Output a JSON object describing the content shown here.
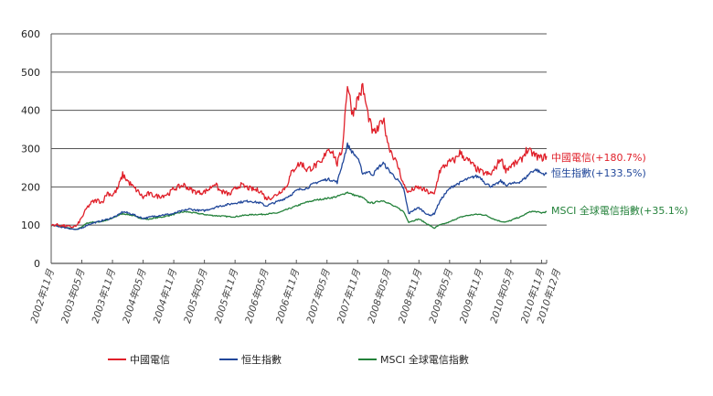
{
  "chart_data": {
    "type": "line",
    "title": "",
    "xlabel": "",
    "ylabel": "",
    "ylim": [
      0,
      600
    ],
    "yticks": [
      0,
      100,
      200,
      300,
      400,
      500,
      600
    ],
    "grid": true,
    "start_month": "2002-11",
    "x_tick_labels": [
      "2002年11月",
      "2003年05月",
      "2003年11月",
      "2004年05月",
      "2004年11月",
      "2005年05月",
      "2005年11月",
      "2006年05月",
      "2006年11月",
      "2007年05月",
      "2007年11月",
      "2008年05月",
      "2008年11月",
      "2009年05月",
      "2009年11月",
      "2010年05月",
      "2010年11月",
      "2010年12月"
    ],
    "x_tick_months": [
      0,
      6,
      12,
      18,
      24,
      30,
      36,
      42,
      48,
      54,
      60,
      66,
      72,
      78,
      84,
      90,
      96,
      97
    ],
    "legend_position": "bottom",
    "series": [
      {
        "name": "中國電信",
        "end_label": "中國電信(+180.7%)",
        "color": "#e0202a",
        "values": [
          100,
          101,
          99,
          97,
          95,
          98,
          120,
          145,
          160,
          165,
          160,
          185,
          178,
          195,
          232,
          215,
          200,
          188,
          172,
          182,
          178,
          175,
          178,
          182,
          195,
          200,
          205,
          195,
          188,
          185,
          187,
          195,
          210,
          190,
          185,
          180,
          195,
          205,
          200,
          195,
          192,
          190,
          170,
          172,
          178,
          190,
          200,
          235,
          255,
          262,
          245,
          250,
          258,
          262,
          300,
          295,
          260,
          300,
          470,
          390,
          430,
          460,
          390,
          340,
          350,
          380,
          310,
          280,
          250,
          205,
          185,
          195,
          198,
          192,
          185,
          180,
          240,
          255,
          265,
          270,
          290,
          275,
          265,
          250,
          240,
          235,
          232,
          250,
          275,
          245,
          255,
          262,
          270,
          295,
          290,
          280,
          275,
          280.7
        ]
      },
      {
        "name": "恒生指數",
        "end_label": "恒生指數(+133.5%)",
        "color": "#21479a",
        "values": [
          100,
          98,
          95,
          93,
          90,
          88,
          92,
          100,
          105,
          108,
          112,
          115,
          120,
          125,
          135,
          132,
          128,
          122,
          118,
          120,
          123,
          125,
          127,
          128,
          130,
          135,
          138,
          142,
          140,
          138,
          138,
          142,
          146,
          150,
          152,
          155,
          158,
          160,
          162,
          163,
          160,
          158,
          150,
          155,
          160,
          165,
          172,
          180,
          190,
          195,
          196,
          205,
          212,
          216,
          220,
          218,
          212,
          260,
          310,
          290,
          275,
          235,
          240,
          232,
          250,
          262,
          245,
          230,
          215,
          195,
          130,
          140,
          145,
          135,
          125,
          130,
          160,
          180,
          195,
          205,
          210,
          218,
          222,
          228,
          225,
          210,
          202,
          205,
          215,
          205,
          208,
          210,
          215,
          225,
          240,
          245,
          235,
          233.5
        ]
      },
      {
        "name": "MSCI 全球電信指數",
        "end_label": "MSCI 全球電信指數(+35.1%)",
        "color": "#23813a",
        "values": [
          100,
          98,
          96,
          94,
          90,
          88,
          96,
          105,
          108,
          108,
          110,
          113,
          118,
          125,
          130,
          128,
          125,
          120,
          117,
          115,
          118,
          120,
          122,
          125,
          128,
          132,
          135,
          134,
          132,
          130,
          128,
          126,
          125,
          124,
          123,
          122,
          122,
          124,
          126,
          127,
          128,
          128,
          129,
          130,
          131,
          135,
          140,
          145,
          150,
          155,
          160,
          163,
          166,
          168,
          170,
          172,
          175,
          180,
          186,
          180,
          176,
          172,
          160,
          158,
          162,
          164,
          158,
          150,
          144,
          135,
          108,
          112,
          116,
          108,
          100,
          92,
          100,
          104,
          108,
          115,
          120,
          124,
          126,
          128,
          128,
          126,
          120,
          114,
          110,
          108,
          112,
          118,
          122,
          130,
          136,
          135,
          132,
          135.1
        ]
      }
    ]
  }
}
